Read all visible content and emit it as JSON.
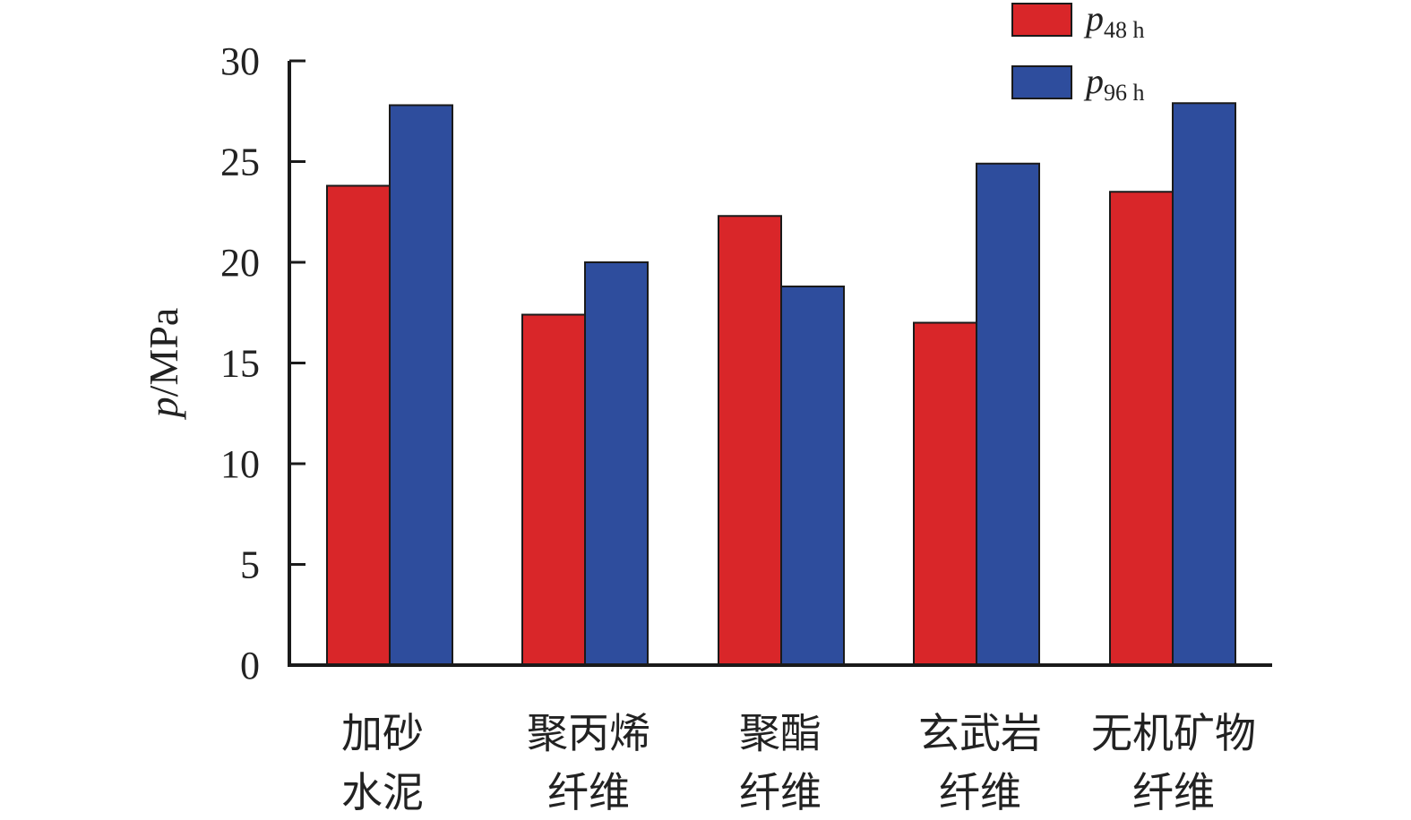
{
  "chart_data": {
    "type": "bar",
    "categories": [
      [
        "加砂",
        "水泥"
      ],
      [
        "聚丙烯",
        "纤维"
      ],
      [
        "聚酯",
        "纤维"
      ],
      [
        "玄武岩",
        "纤维"
      ],
      [
        "无机矿物",
        "纤维"
      ]
    ],
    "series": [
      {
        "name_main": "p",
        "name_sub": "48 h",
        "color": "#d92629",
        "values": [
          23.8,
          17.4,
          22.3,
          17.0,
          23.5
        ]
      },
      {
        "name_main": "p",
        "name_sub": "96 h",
        "color": "#2e4d9d",
        "values": [
          27.8,
          20.0,
          18.8,
          24.9,
          27.9
        ]
      }
    ],
    "ylabel_main": "p",
    "ylabel_rest": "/MPa",
    "ylim": [
      0,
      30
    ],
    "yticks": [
      "0",
      "5",
      "10",
      "15",
      "20",
      "25",
      "30"
    ],
    "legend": "top-right",
    "grid": false
  }
}
